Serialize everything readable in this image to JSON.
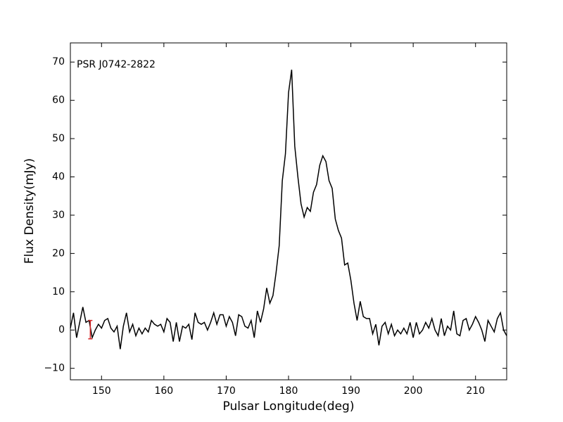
{
  "chart_data": {
    "type": "line",
    "annotation": "PSR J0742-2822",
    "x_label": "Pulsar Longitude(deg)",
    "y_label": "Flux Density(mJy)",
    "xlim": [
      145,
      215
    ],
    "ylim": [
      -13,
      75
    ],
    "xticks": [
      150,
      160,
      170,
      180,
      190,
      200,
      210
    ],
    "yticks": [
      {
        "value": -10,
        "label": "−10"
      },
      0,
      10,
      20,
      30,
      40,
      50,
      60,
      70
    ],
    "series": [
      {
        "color": "#000000",
        "x": [
          145,
          145.5,
          146,
          146.5,
          147,
          147.5,
          148,
          148.5,
          149,
          149.5,
          150,
          150.5,
          151,
          151.5,
          152,
          152.5,
          153,
          153.5,
          154,
          154.5,
          155,
          155.5,
          156,
          156.5,
          157,
          157.5,
          158,
          158.5,
          159,
          159.5,
          160,
          160.5,
          161,
          161.5,
          162,
          162.5,
          163,
          163.5,
          164,
          164.5,
          165,
          165.5,
          166,
          166.5,
          167,
          167.5,
          168,
          168.5,
          169,
          169.5,
          170,
          170.5,
          171,
          171.5,
          172,
          172.5,
          173,
          173.5,
          174,
          174.5,
          175,
          175.5,
          176,
          176.5,
          177,
          177.5,
          178,
          178.5,
          179,
          179.5,
          180,
          180.5,
          181,
          181.5,
          182,
          182.5,
          183,
          183.5,
          184,
          184.5,
          185,
          185.5,
          186,
          186.5,
          187,
          187.5,
          188,
          188.5,
          189,
          189.5,
          190,
          190.5,
          191,
          191.5,
          192,
          192.5,
          193,
          193.5,
          194,
          194.5,
          195,
          195.5,
          196,
          196.5,
          197,
          197.5,
          198,
          198.5,
          199,
          199.5,
          200,
          200.5,
          201,
          201.5,
          202,
          202.5,
          203,
          203.5,
          204,
          204.5,
          205,
          205.5,
          206,
          206.5,
          207,
          207.5,
          208,
          208.5,
          209,
          209.5,
          210,
          210.5,
          211,
          211.5,
          212,
          212.5,
          213,
          213.5,
          214,
          214.5,
          215
        ],
        "values": [
          0.5,
          4.5,
          -2,
          2,
          6,
          2,
          2.5,
          -2,
          0,
          1.5,
          0.5,
          2.5,
          3,
          0.5,
          -0.5,
          1,
          -5,
          1,
          4.5,
          -0.5,
          1.5,
          -1.5,
          0.5,
          -1,
          0.5,
          -0.5,
          2.5,
          1.5,
          1,
          1.5,
          -0.5,
          3,
          2,
          -3,
          2,
          -3,
          1,
          0.5,
          1.5,
          -2.5,
          4.5,
          2,
          1.5,
          2,
          0,
          2,
          4.5,
          1.5,
          4,
          4,
          1,
          3.5,
          2,
          -1.5,
          4,
          3.5,
          1,
          0.5,
          2.5,
          -2,
          5,
          2,
          5.5,
          11,
          7,
          9,
          15,
          22,
          39,
          46,
          62,
          68,
          48,
          40,
          33,
          29.5,
          32,
          31,
          36,
          38,
          43,
          45.5,
          44,
          39,
          37,
          29,
          26,
          24,
          17,
          17.5,
          13,
          7,
          2.5,
          7.5,
          3.5,
          3,
          3,
          -1,
          1.5,
          -4,
          1,
          2,
          -1,
          1.5,
          -1.5,
          0,
          -1,
          0.5,
          -1,
          2,
          -2,
          2,
          -1,
          0,
          2,
          0.5,
          3,
          0,
          -1.5,
          3,
          -1.5,
          1,
          0,
          5,
          -1,
          -1.5,
          2.5,
          3,
          0,
          1.5,
          3.5,
          2,
          0,
          -3,
          2.5,
          1,
          -0.5,
          3,
          4.5,
          0,
          -1.5
        ]
      }
    ],
    "error_bar": {
      "x": 148.2,
      "y": 0.1,
      "error": 2.4,
      "color": "#d62728"
    }
  }
}
